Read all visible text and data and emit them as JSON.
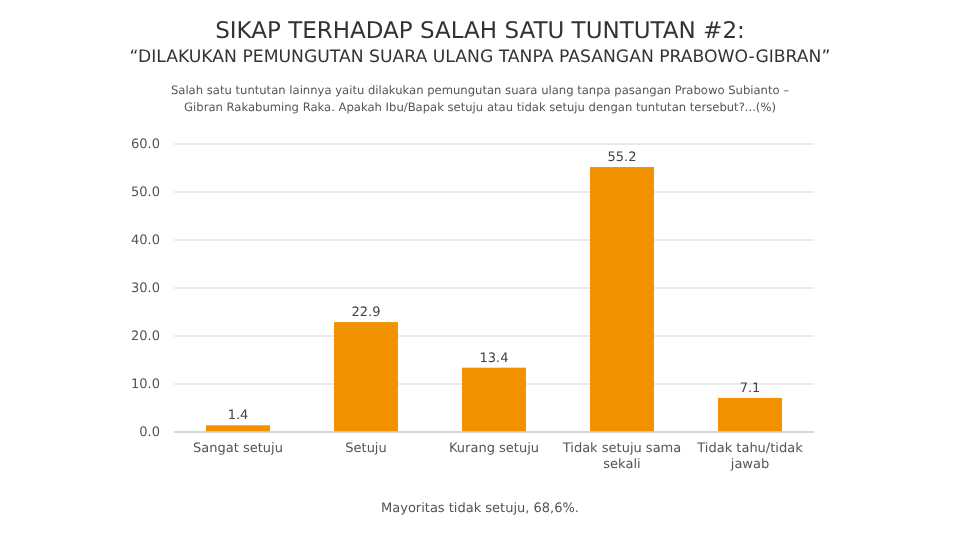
{
  "chart_data": {
    "type": "bar",
    "title": "SIKAP TERHADAP SALAH SATU TUNTUTAN #2:\n“DILAKUKAN PEMUNGUTAN SUARA ULANG TANPA PASANGAN PRABOWO-GIBRAN”",
    "subtitle": "Salah satu tuntutan lainnya yaitu dilakukan pemungutan suara ulang tanpa pasangan Prabowo Subianto – Gibran Rakabuming Raka. Apakah Ibu/Bapak setuju atau tidak setuju dengan tuntutan tersebut?...(%)",
    "categories": [
      "Sangat setuju",
      "Setuju",
      "Kurang setuju",
      "Tidak setuju sama sekali",
      "Tidak tahu/tidak jawab"
    ],
    "values": [
      1.4,
      22.9,
      13.4,
      55.2,
      7.1
    ],
    "color": "#f39200",
    "ylim": [
      0,
      60
    ],
    "yticks": [
      {
        "value": 0,
        "label": "0.0"
      },
      {
        "value": 10,
        "label": "10.0"
      },
      {
        "value": 20,
        "label": "20.0"
      },
      {
        "value": 30,
        "label": "30.0"
      },
      {
        "value": 40,
        "label": "40.0"
      },
      {
        "value": 50,
        "label": "50.0"
      },
      {
        "value": 60,
        "label": "60.0"
      }
    ],
    "grid": "y",
    "data_labels": true,
    "annotations": [
      "Mayoritas tidak setuju, 68,6%."
    ]
  }
}
